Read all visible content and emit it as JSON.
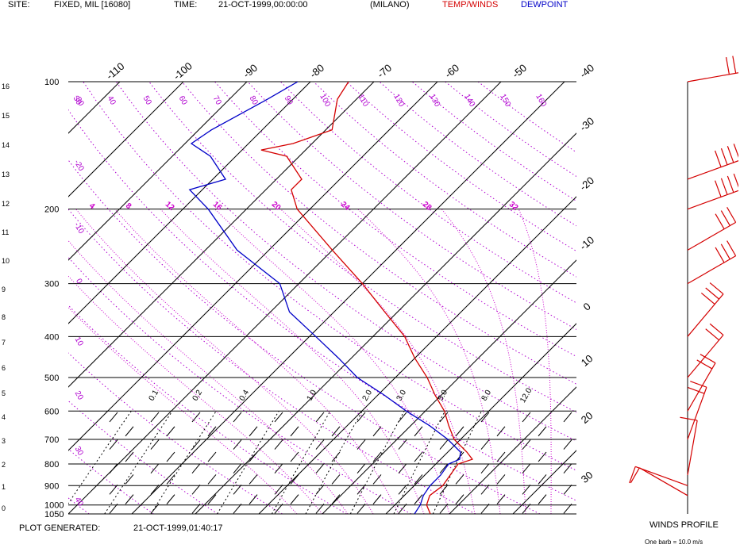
{
  "header": {
    "site_label": "SITE:",
    "site_value": "FIXED, MIL [16080]",
    "time_label": "TIME:",
    "time_value": "21-OCT-1999,00:00:00",
    "station": "(MILANO)",
    "temp_legend": "TEMP/WINDS",
    "dew_legend": "DEWPOINT"
  },
  "footer": {
    "generated_label": "PLOT GENERATED:",
    "generated_value": "21-OCT-1999,01:40:17",
    "winds_title": "WINDS PROFILE",
    "winds_note": "One barb = 10.0 m/s"
  },
  "colors": {
    "temperature": "#d40000",
    "dewpoint": "#0000c8",
    "isotherm": "#000000",
    "dry_adiabat": "#b000d0",
    "mixing_ratio": "#000000",
    "moist_adiabat": "#cc00cc"
  },
  "chart_data": {
    "type": "line",
    "subtype": "skew-T log-P",
    "pressure_levels": [
      100,
      200,
      300,
      400,
      500,
      600,
      700,
      800,
      900,
      1000,
      1050
    ],
    "pressure_labels": [
      "100",
      "200",
      "300",
      "400",
      "500",
      "600",
      "700",
      "800",
      "900",
      "1000",
      "1050"
    ],
    "height_km_labels": [
      "16",
      "15",
      "14",
      "13",
      "12",
      "11",
      "10",
      "9",
      "8",
      "7",
      "6",
      "5",
      "4",
      "3",
      "2",
      "1",
      "0"
    ],
    "isotherm_labels": [
      "-110",
      "-100",
      "-90",
      "-80",
      "-70",
      "-60",
      "-50",
      "-40",
      "-30",
      "-20",
      "-10",
      "0",
      "10",
      "20",
      "30"
    ],
    "mixing_ratio_labels": [
      "0.1",
      "0.2",
      "0.4",
      "1.0",
      "2.0",
      "3.0",
      "5.0",
      "8.0",
      "12.0"
    ],
    "dry_adiabat_labels": [
      "30",
      "40",
      "50",
      "60",
      "70",
      "80",
      "90",
      "100",
      "110",
      "120",
      "130",
      "140",
      "150",
      "160"
    ],
    "moist_adiabat_labels": [
      "4",
      "8",
      "12",
      "16",
      "20",
      "24",
      "28",
      "32"
    ],
    "left_adiabat_labels": [
      "-30",
      "-20",
      "-10",
      "0",
      "10",
      "20",
      "30",
      "40"
    ],
    "temperature": {
      "name": "TEMP/WINDS",
      "points": [
        {
          "p": 1050,
          "t": 17
        },
        {
          "p": 1000,
          "t": 15
        },
        {
          "p": 950,
          "t": 14
        },
        {
          "p": 900,
          "t": 14.5
        },
        {
          "p": 850,
          "t": 14
        },
        {
          "p": 800,
          "t": 13.5
        },
        {
          "p": 780,
          "t": 15
        },
        {
          "p": 750,
          "t": 13
        },
        {
          "p": 700,
          "t": 9
        },
        {
          "p": 650,
          "t": 6
        },
        {
          "p": 600,
          "t": 3
        },
        {
          "p": 550,
          "t": -1
        },
        {
          "p": 500,
          "t": -5
        },
        {
          "p": 450,
          "t": -10
        },
        {
          "p": 400,
          "t": -15
        },
        {
          "p": 350,
          "t": -22
        },
        {
          "p": 300,
          "t": -30
        },
        {
          "p": 250,
          "t": -40
        },
        {
          "p": 200,
          "t": -52
        },
        {
          "p": 180,
          "t": -56
        },
        {
          "p": 170,
          "t": -56
        },
        {
          "p": 150,
          "t": -62
        },
        {
          "p": 145,
          "t": -67
        },
        {
          "p": 140,
          "t": -63
        },
        {
          "p": 130,
          "t": -59
        },
        {
          "p": 110,
          "t": -63
        },
        {
          "p": 100,
          "t": -64
        }
      ]
    },
    "dewpoint": {
      "name": "DEWPOINT",
      "points": [
        {
          "p": 1050,
          "t": 14.5
        },
        {
          "p": 1000,
          "t": 14
        },
        {
          "p": 950,
          "t": 13
        },
        {
          "p": 900,
          "t": 12.5
        },
        {
          "p": 850,
          "t": 12.5
        },
        {
          "p": 800,
          "t": 12
        },
        {
          "p": 780,
          "t": 13
        },
        {
          "p": 750,
          "t": 12
        },
        {
          "p": 700,
          "t": 8
        },
        {
          "p": 650,
          "t": 3
        },
        {
          "p": 600,
          "t": -3
        },
        {
          "p": 550,
          "t": -9
        },
        {
          "p": 500,
          "t": -16
        },
        {
          "p": 450,
          "t": -22
        },
        {
          "p": 400,
          "t": -29
        },
        {
          "p": 350,
          "t": -37
        },
        {
          "p": 300,
          "t": -43
        },
        {
          "p": 250,
          "t": -55
        },
        {
          "p": 200,
          "t": -66
        },
        {
          "p": 180,
          "t": -72
        },
        {
          "p": 170,
          "t": -68
        },
        {
          "p": 150,
          "t": -74
        },
        {
          "p": 140,
          "t": -79
        },
        {
          "p": 130,
          "t": -78
        },
        {
          "p": 110,
          "t": -74
        },
        {
          "p": 100,
          "t": -72
        }
      ]
    },
    "winds": [
      {
        "p": 100,
        "dir": 260,
        "speed": 30
      },
      {
        "p": 170,
        "dir": 250,
        "speed": 40
      },
      {
        "p": 200,
        "dir": 250,
        "speed": 40
      },
      {
        "p": 250,
        "dir": 240,
        "speed": 30
      },
      {
        "p": 300,
        "dir": 240,
        "speed": 30
      },
      {
        "p": 400,
        "dir": 220,
        "speed": 30
      },
      {
        "p": 500,
        "dir": 220,
        "speed": 20
      },
      {
        "p": 600,
        "dir": 210,
        "speed": 20
      },
      {
        "p": 700,
        "dir": 200,
        "speed": 20
      },
      {
        "p": 850,
        "dir": 190,
        "speed": 10
      },
      {
        "p": 900,
        "dir": 110,
        "speed": 10
      },
      {
        "p": 950,
        "dir": 120,
        "speed": 10
      }
    ],
    "ylim": [
      100,
      1050
    ],
    "xlim_c": [
      -40,
      40
    ],
    "y_scale": "log"
  }
}
